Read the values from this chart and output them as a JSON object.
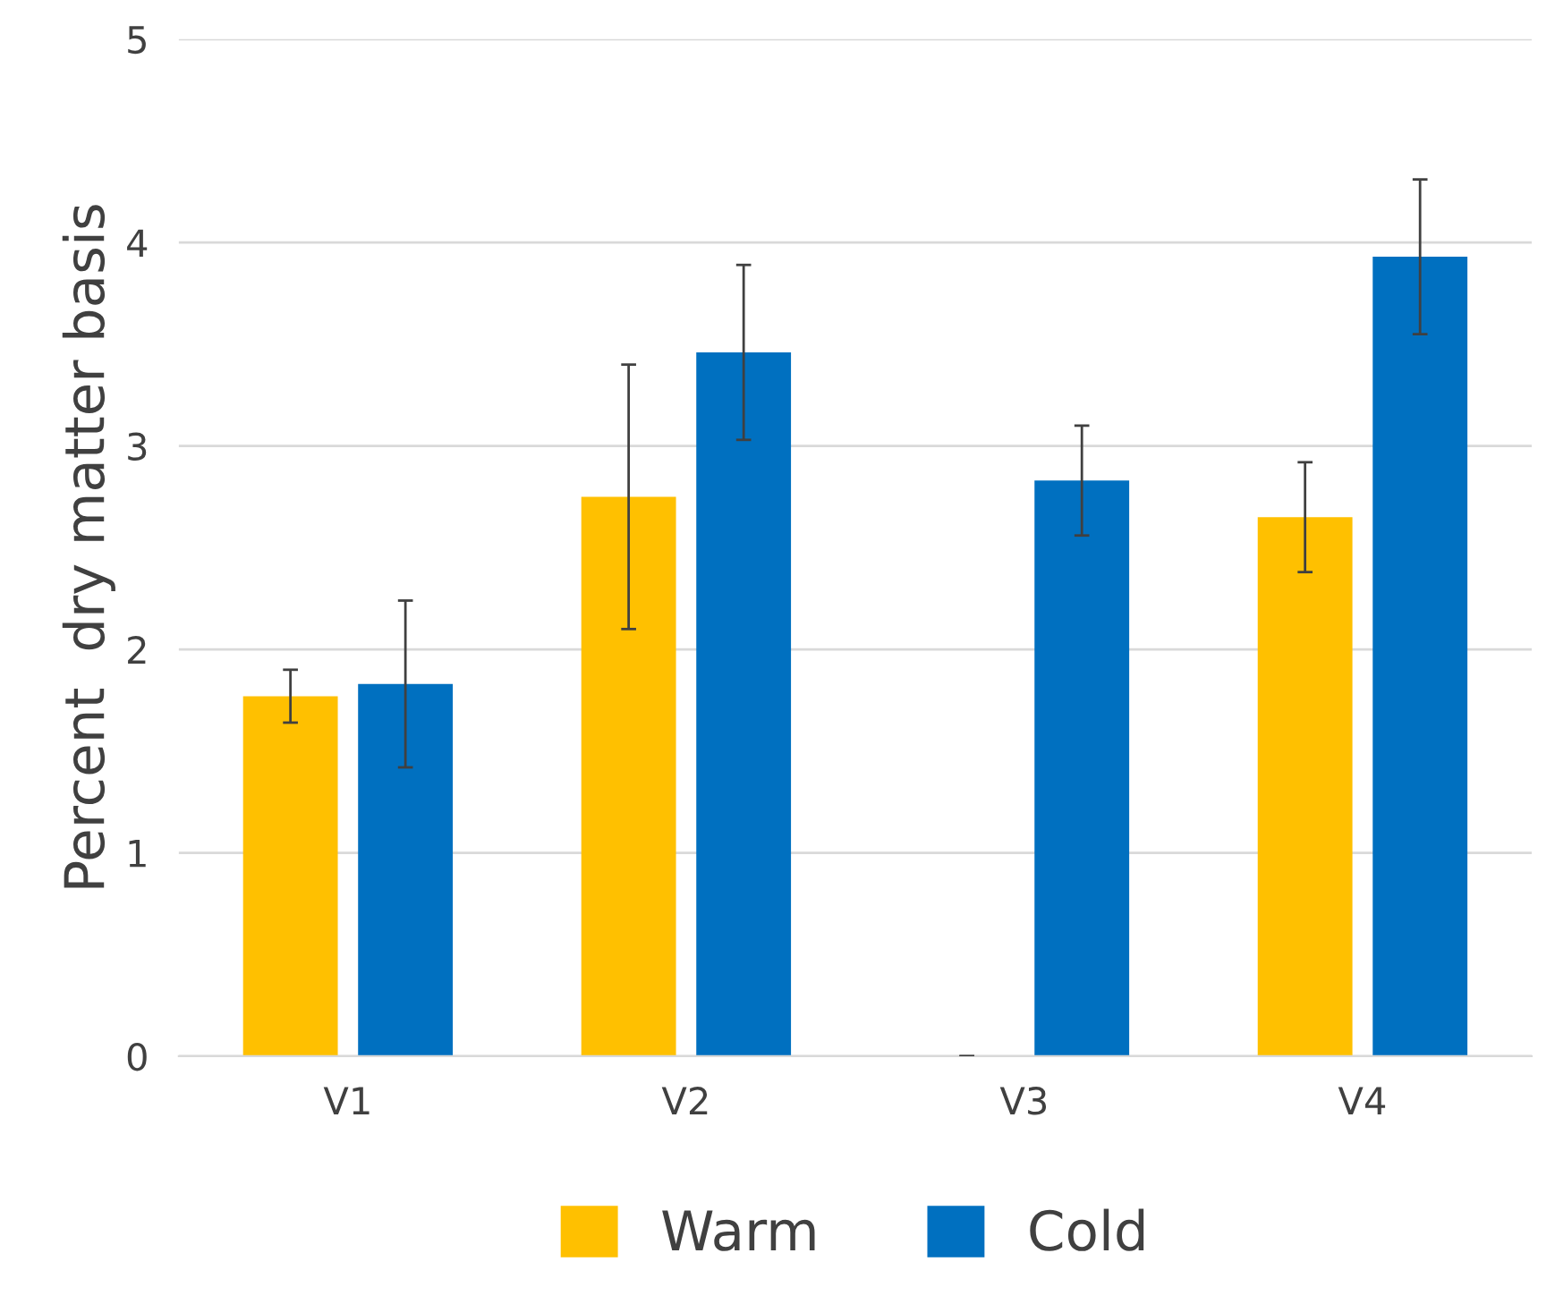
{
  "chart_data": {
    "type": "bar",
    "ylabel": "Percent  dry matter basis",
    "categories": [
      "V1",
      "V2",
      "V3",
      "V4"
    ],
    "series": [
      {
        "name": "Warm",
        "color": "#ffc000",
        "values": [
          1.77,
          2.75,
          0,
          2.65
        ],
        "errors": [
          0.13,
          0.65,
          0,
          0.27
        ]
      },
      {
        "name": "Cold",
        "color": "#0070c0",
        "values": [
          1.83,
          3.46,
          2.83,
          3.93
        ],
        "errors": [
          0.41,
          0.43,
          0.27,
          0.38
        ]
      }
    ],
    "ylim": [
      0,
      5
    ],
    "yticks": [
      0,
      1,
      2,
      3,
      4,
      5
    ],
    "grid": "y",
    "legend": "bottom"
  }
}
